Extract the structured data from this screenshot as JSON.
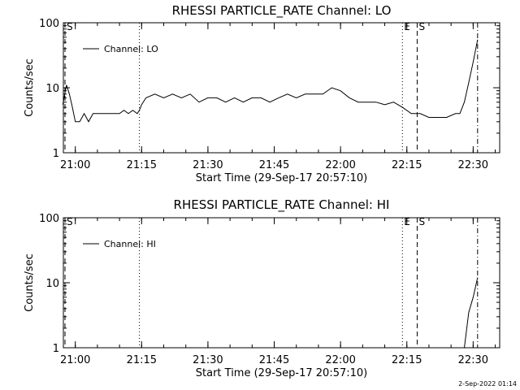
{
  "chart_data": [
    {
      "type": "line",
      "title": "RHESSI PARTICLE_RATE Channel: LO",
      "xlabel": "Start Time (29-Sep-17 20:57:10)",
      "ylabel": "Counts/sec",
      "yscale": "log",
      "ylim": [
        1,
        100
      ],
      "xlim_minutes": [
        20.955,
        22.6
      ],
      "x_ticks": [
        "21:00",
        "21:15",
        "21:30",
        "21:45",
        "22:00",
        "22:15",
        "22:30"
      ],
      "y_ticks": [
        "1",
        "10",
        "100"
      ],
      "legend": {
        "entries": [
          "Channel: LO"
        ],
        "position": "top-left"
      },
      "markers": [
        {
          "label": "S",
          "style": "dashed",
          "time": "20:57:40"
        },
        {
          "label": "",
          "style": "dotted",
          "time": "21:14:30"
        },
        {
          "label": "E",
          "style": "dotted",
          "time": "22:14:00"
        },
        {
          "label": "S",
          "style": "dashed",
          "time": "22:17:20"
        },
        {
          "label": "",
          "style": "dashdot",
          "time": "22:31:00"
        }
      ],
      "series": [
        {
          "name": "Channel: LO",
          "x": [
            "20:57:10",
            "20:58:00",
            "20:58:40",
            "20:59:20",
            "21:00:00",
            "21:01:00",
            "21:02:00",
            "21:03:00",
            "21:04:00",
            "21:05:00",
            "21:06:00",
            "21:08:00",
            "21:10:00",
            "21:11:00",
            "21:12:00",
            "21:13:00",
            "21:14:00",
            "21:14:30",
            "21:15:00",
            "21:16:00",
            "21:18:00",
            "21:20:00",
            "21:22:00",
            "21:24:00",
            "21:26:00",
            "21:28:00",
            "21:30:00",
            "21:32:00",
            "21:34:00",
            "21:36:00",
            "21:38:00",
            "21:40:00",
            "21:42:00",
            "21:44:00",
            "21:46:00",
            "21:48:00",
            "21:50:00",
            "21:52:00",
            "21:54:00",
            "21:56:00",
            "21:58:00",
            "22:00:00",
            "22:02:00",
            "22:04:00",
            "22:06:00",
            "22:08:00",
            "22:10:00",
            "22:12:00",
            "22:14:00",
            "22:16:00",
            "22:18:00",
            "22:20:00",
            "22:22:00",
            "22:24:00",
            "22:26:00",
            "22:27:00",
            "22:28:00",
            "22:29:00",
            "22:30:00",
            "22:31:00"
          ],
          "values": [
            5.5,
            11,
            8,
            5,
            3,
            3,
            4,
            3,
            4,
            4,
            4,
            4,
            4,
            4.5,
            4,
            4.5,
            4,
            4.5,
            5.5,
            7,
            8,
            7,
            8,
            7,
            8,
            6,
            7,
            7,
            6,
            7,
            6,
            7,
            7,
            6,
            7,
            8,
            7,
            8,
            8,
            8,
            10,
            9,
            7,
            6,
            6,
            6,
            5.5,
            6,
            5,
            4,
            4,
            3.5,
            3.5,
            3.5,
            4,
            4,
            6,
            12,
            25,
            55
          ]
        }
      ]
    },
    {
      "type": "line",
      "title": "RHESSI PARTICLE_RATE Channel: HI",
      "xlabel": "Start Time (29-Sep-17 20:57:10)",
      "ylabel": "Counts/sec",
      "yscale": "log",
      "ylim": [
        1,
        100
      ],
      "xlim_minutes": [
        20.955,
        22.6
      ],
      "x_ticks": [
        "21:00",
        "21:15",
        "21:30",
        "21:45",
        "22:00",
        "22:15",
        "22:30"
      ],
      "y_ticks": [
        "1",
        "10",
        "100"
      ],
      "legend": {
        "entries": [
          "Channel: HI"
        ],
        "position": "top-left"
      },
      "markers": [
        {
          "label": "S",
          "style": "dashed",
          "time": "20:57:40"
        },
        {
          "label": "",
          "style": "dotted",
          "time": "21:14:30"
        },
        {
          "label": "E",
          "style": "dotted",
          "time": "22:14:00"
        },
        {
          "label": "S",
          "style": "dashed",
          "time": "22:17:20"
        },
        {
          "label": "",
          "style": "dashdot",
          "time": "22:31:00"
        }
      ],
      "series": [
        {
          "name": "Channel: HI",
          "x": [
            "22:28:00",
            "22:29:00",
            "22:30:00",
            "22:31:00"
          ],
          "values": [
            1,
            3.5,
            6,
            12
          ]
        }
      ]
    }
  ],
  "footer": {
    "date_stamp": "2-Sep-2022 01:14"
  }
}
